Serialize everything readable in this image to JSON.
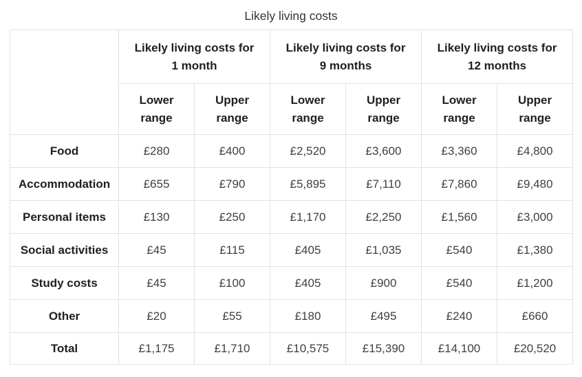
{
  "title": "Likely living costs",
  "table": {
    "groups": [
      {
        "label": "Likely living costs for 1 month",
        "line1": "Likely living costs for",
        "line2": "1 month"
      },
      {
        "label": "Likely living costs for 9 months",
        "line1": "Likely living costs for",
        "line2": "9 months"
      },
      {
        "label": "Likely living costs for 12 months",
        "line1": "Likely living costs for",
        "line2": "12 months"
      }
    ],
    "subheaders": [
      {
        "label": "Lower range",
        "line1": "Lower",
        "line2": "range"
      },
      {
        "label": "Upper range",
        "line1": "Upper",
        "line2": "range"
      }
    ],
    "rows": [
      {
        "label": "Food",
        "values": [
          "£280",
          "£400",
          "£2,520",
          "£3,600",
          "£3,360",
          "£4,800"
        ]
      },
      {
        "label": "Accommodation",
        "values": [
          "£655",
          "£790",
          "£5,895",
          "£7,110",
          "£7,860",
          "£9,480"
        ]
      },
      {
        "label": "Personal items",
        "values": [
          "£130",
          "£250",
          "£1,170",
          "£2,250",
          "£1,560",
          "£3,000"
        ]
      },
      {
        "label": "Social activities",
        "values": [
          "£45",
          "£115",
          "£405",
          "£1,035",
          "£540",
          "£1,380"
        ]
      },
      {
        "label": "Study costs",
        "values": [
          "£45",
          "£100",
          "£405",
          "£900",
          "£540",
          "£1,200"
        ]
      },
      {
        "label": "Other",
        "values": [
          "£20",
          "£55",
          "£180",
          "£495",
          "£240",
          "£660"
        ]
      },
      {
        "label": "Total",
        "values": [
          "£1,175",
          "£1,710",
          "£10,575",
          "£15,390",
          "£14,100",
          "£20,520"
        ]
      }
    ]
  },
  "chart_data": {
    "type": "table",
    "title": "Likely living costs",
    "currency": "GBP",
    "column_groups": [
      "Likely living costs for 1 month",
      "Likely living costs for 9 months",
      "Likely living costs for 12 months"
    ],
    "columns": [
      "Lower range",
      "Upper range",
      "Lower range",
      "Upper range",
      "Lower range",
      "Upper range"
    ],
    "row_labels": [
      "Food",
      "Accommodation",
      "Personal items",
      "Social activities",
      "Study costs",
      "Other",
      "Total"
    ],
    "values": [
      [
        280,
        400,
        2520,
        3600,
        3360,
        4800
      ],
      [
        655,
        790,
        5895,
        7110,
        7860,
        9480
      ],
      [
        130,
        250,
        1170,
        2250,
        1560,
        3000
      ],
      [
        45,
        115,
        405,
        1035,
        540,
        1380
      ],
      [
        45,
        100,
        405,
        900,
        540,
        1200
      ],
      [
        20,
        55,
        180,
        495,
        240,
        660
      ],
      [
        1175,
        1710,
        10575,
        15390,
        14100,
        20520
      ]
    ]
  },
  "colors": {
    "background": "#ffffff",
    "border": "#e1e1e1",
    "header_text": "#202020",
    "value_text": "#3f3f3f",
    "title_text": "#333333"
  }
}
